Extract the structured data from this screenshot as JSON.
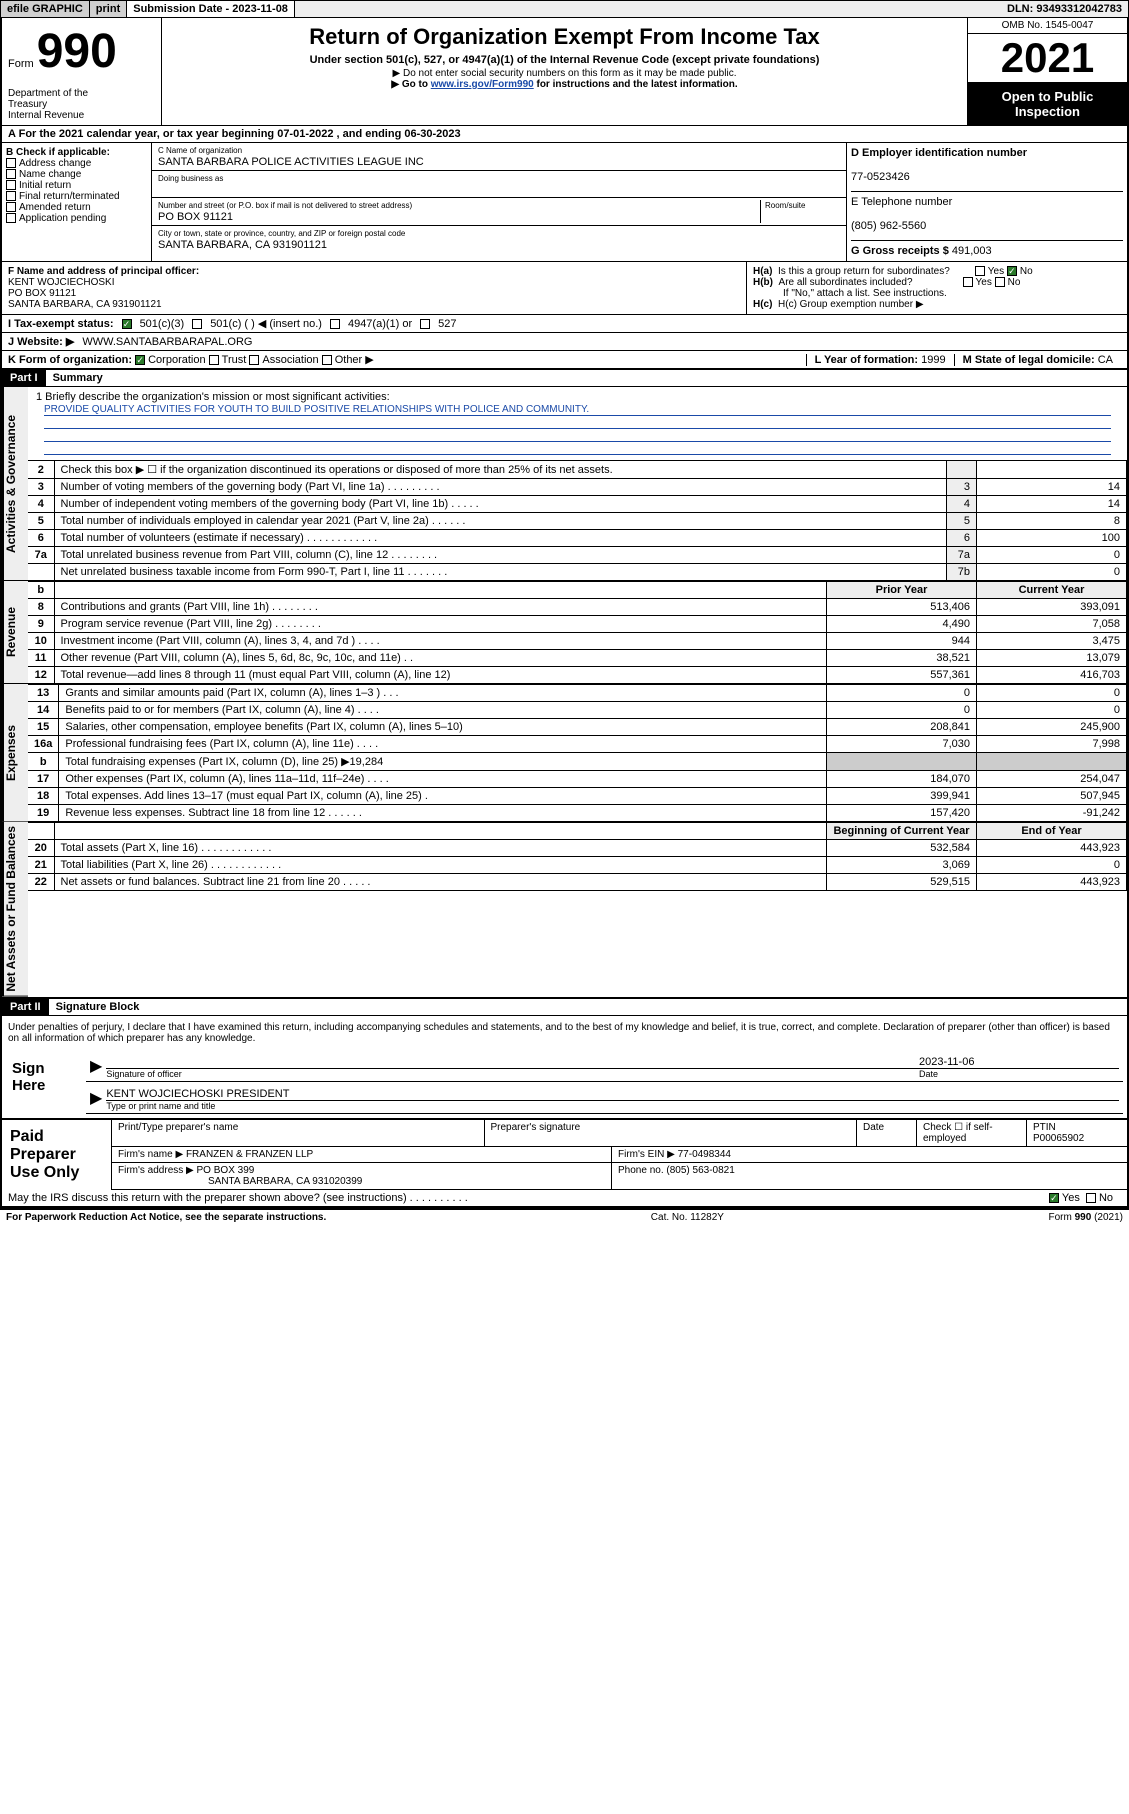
{
  "topbar": {
    "efile": "efile GRAPHIC",
    "print": "print",
    "submission": "Submission Date - 2023-11-08",
    "dln": "DLN: 93493312042783"
  },
  "header": {
    "form_label": "Form",
    "form_num": "990",
    "dept": "Department of the Treasury\nInternal Revenue Service",
    "title": "Return of Organization Exempt From Income Tax",
    "sub1": "Under section 501(c), 527, or 4947(a)(1) of the Internal Revenue Code (except private foundations)",
    "sub2": "▶ Do not enter social security numbers on this form as it may be made public.",
    "sub3_prefix": "▶ Go to ",
    "sub3_link": "www.irs.gov/Form990",
    "sub3_suffix": " for instructions and the latest information.",
    "omb": "OMB No. 1545-0047",
    "year": "2021",
    "open": "Open to Public Inspection"
  },
  "line_a": "For the 2021 calendar year, or tax year beginning 07-01-2022   , and ending 06-30-2023",
  "block_b": {
    "hdr": "B Check if applicable:",
    "items": [
      "Address change",
      "Name change",
      "Initial return",
      "Final return/terminated",
      "Amended return",
      "Application pending"
    ]
  },
  "block_c": {
    "name_lbl": "C Name of organization",
    "name": "SANTA BARBARA POLICE ACTIVITIES LEAGUE INC",
    "dba_lbl": "Doing business as",
    "addr_lbl": "Number and street (or P.O. box if mail is not delivered to street address)",
    "room_lbl": "Room/suite",
    "addr": "PO BOX 91121",
    "city_lbl": "City or town, state or province, country, and ZIP or foreign postal code",
    "city": "SANTA BARBARA, CA  931901121"
  },
  "block_d": {
    "ein_lbl": "D Employer identification number",
    "ein": "77-0523426",
    "tel_lbl": "E Telephone number",
    "tel": "(805) 962-5560",
    "gross_lbl": "G Gross receipts $",
    "gross": "491,003"
  },
  "block_f": {
    "lbl": "F Name and address of principal officer:",
    "name": "KENT WOJCIECHOSKI",
    "addr1": "PO BOX 91121",
    "addr2": "SANTA BARBARA, CA  931901121"
  },
  "block_h": {
    "a_lbl": "H(a)  Is this a group return for subordinates?",
    "b_lbl": "H(b)  Are all subordinates included?",
    "no_note": "If \"No,\" attach a list. See instructions.",
    "c_lbl": "H(c)  Group exemption number ▶",
    "yes": "Yes",
    "no": "No"
  },
  "line_i": {
    "lbl": "I    Tax-exempt status:",
    "opt1": "501(c)(3)",
    "opt2": "501(c) (  ) ◀ (insert no.)",
    "opt3": "4947(a)(1) or",
    "opt4": "527"
  },
  "line_j": {
    "lbl": "J    Website: ▶",
    "val": "WWW.SANTABARBARAPAL.ORG"
  },
  "line_k": {
    "lbl": "K Form of organization:",
    "opts": [
      "Corporation",
      "Trust",
      "Association",
      "Other ▶"
    ]
  },
  "line_l": {
    "lbl": "L Year of formation:",
    "val": "1999"
  },
  "line_m": {
    "lbl": "M State of legal domicile:",
    "val": "CA"
  },
  "part1": {
    "hdr": "Part I",
    "title": "Summary"
  },
  "mission": {
    "line1_lbl": "1   Briefly describe the organization's mission or most significant activities:",
    "text": "PROVIDE QUALITY ACTIVITIES FOR YOUTH TO BUILD POSITIVE RELATIONSHIPS WITH POLICE AND COMMUNITY."
  },
  "gov_rows": [
    {
      "n": "2",
      "label": "Check this box ▶ ☐  if the organization discontinued its operations or disposed of more than 25% of its net assets.",
      "cell": "",
      "val": ""
    },
    {
      "n": "3",
      "label": "Number of voting members of the governing body (Part VI, line 1a)   .    .    .    .    .    .    .    .    .",
      "cell": "3",
      "val": "14"
    },
    {
      "n": "4",
      "label": "Number of independent voting members of the governing body (Part VI, line 1b)   .    .    .    .    .",
      "cell": "4",
      "val": "14"
    },
    {
      "n": "5",
      "label": "Total number of individuals employed in calendar year 2021 (Part V, line 2a)   .    .    .    .    .    .",
      "cell": "5",
      "val": "8"
    },
    {
      "n": "6",
      "label": "Total number of volunteers (estimate if necessary)   .    .    .    .    .    .    .    .    .    .    .    .",
      "cell": "6",
      "val": "100"
    },
    {
      "n": "7a",
      "label": "Total unrelated business revenue from Part VIII, column (C), line 12   .    .    .    .    .    .    .    .",
      "cell": "7a",
      "val": "0"
    },
    {
      "n": "",
      "label": "Net unrelated business taxable income from Form 990-T, Part I, line 11   .    .    .    .    .    .    .",
      "cell": "7b",
      "val": "0"
    }
  ],
  "two_col_hdr": {
    "b": "b",
    "prior": "Prior Year",
    "current": "Current Year"
  },
  "revenue_rows": [
    {
      "n": "8",
      "label": "Contributions and grants (Part VIII, line 1h)   .    .    .    .    .    .    .    .",
      "p": "513,406",
      "c": "393,091"
    },
    {
      "n": "9",
      "label": "Program service revenue (Part VIII, line 2g)   .    .    .    .    .    .    .    .",
      "p": "4,490",
      "c": "7,058"
    },
    {
      "n": "10",
      "label": "Investment income (Part VIII, column (A), lines 3, 4, and 7d )   .    .    .    .",
      "p": "944",
      "c": "3,475"
    },
    {
      "n": "11",
      "label": "Other revenue (Part VIII, column (A), lines 5, 6d, 8c, 9c, 10c, and 11e)    .    .",
      "p": "38,521",
      "c": "13,079"
    },
    {
      "n": "12",
      "label": "Total revenue—add lines 8 through 11 (must equal Part VIII, column (A), line 12)",
      "p": "557,361",
      "c": "416,703"
    }
  ],
  "expense_rows": [
    {
      "n": "13",
      "label": "Grants and similar amounts paid (Part IX, column (A), lines 1–3 )   .    .    .",
      "p": "0",
      "c": "0"
    },
    {
      "n": "14",
      "label": "Benefits paid to or for members (Part IX, column (A), line 4)   .    .    .    .",
      "p": "0",
      "c": "0"
    },
    {
      "n": "15",
      "label": "Salaries, other compensation, employee benefits (Part IX, column (A), lines 5–10)",
      "p": "208,841",
      "c": "245,900"
    },
    {
      "n": "16a",
      "label": "Professional fundraising fees (Part IX, column (A), line 11e)   .    .    .    .",
      "p": "7,030",
      "c": "7,998"
    },
    {
      "n": "b",
      "label": "Total fundraising expenses (Part IX, column (D), line 25) ▶19,284",
      "p": "grey",
      "c": "grey"
    },
    {
      "n": "17",
      "label": "Other expenses (Part IX, column (A), lines 11a–11d, 11f–24e)   .    .    .    .",
      "p": "184,070",
      "c": "254,047"
    },
    {
      "n": "18",
      "label": "Total expenses. Add lines 13–17 (must equal Part IX, column (A), line 25)    .",
      "p": "399,941",
      "c": "507,945"
    },
    {
      "n": "19",
      "label": "Revenue less expenses. Subtract line 18 from line 12   .    .    .    .    .    .",
      "p": "157,420",
      "c": "-91,242"
    }
  ],
  "net_hdr": {
    "prior": "Beginning of Current Year",
    "current": "End of Year"
  },
  "net_rows": [
    {
      "n": "20",
      "label": "Total assets (Part X, line 16)   .    .    .    .    .    .    .    .    .    .    .    .",
      "p": "532,584",
      "c": "443,923"
    },
    {
      "n": "21",
      "label": "Total liabilities (Part X, line 26)   .    .    .    .    .    .    .    .    .    .    .    .",
      "p": "3,069",
      "c": "0"
    },
    {
      "n": "22",
      "label": "Net assets or fund balances. Subtract line 21 from line 20   .    .    .    .    .",
      "p": "529,515",
      "c": "443,923"
    }
  ],
  "part2": {
    "hdr": "Part II",
    "title": "Signature Block"
  },
  "declaration": "Under penalties of perjury, I declare that I have examined this return, including accompanying schedules and statements, and to the best of my knowledge and belief, it is true, correct, and complete. Declaration of preparer (other than officer) is based on all information of which preparer has any knowledge.",
  "sign": {
    "left": "Sign Here",
    "date": "2023-11-06",
    "sig_lbl": "Signature of officer",
    "date_lbl": "Date",
    "name": "KENT WOJCIECHOSKI  PRESIDENT",
    "name_lbl": "Type or print name and title"
  },
  "paid": {
    "left": "Paid Preparer Use Only",
    "h1": "Print/Type preparer's name",
    "h2": "Preparer's signature",
    "h3": "Date",
    "h4_pre": "Check ☐ if self-employed",
    "h5_lbl": "PTIN",
    "h5": "P00065902",
    "firm_lbl": "Firm's name    ▶",
    "firm": "FRANZEN & FRANZEN LLP",
    "ein_lbl": "Firm's EIN ▶",
    "ein": "77-0498344",
    "addr_lbl": "Firm's address ▶",
    "addr1": "PO BOX 399",
    "addr2": "SANTA BARBARA, CA  931020399",
    "phone_lbl": "Phone no.",
    "phone": "(805) 563-0821"
  },
  "discuss": "May the IRS discuss this return with the preparer shown above? (see instructions)   .    .    .    .    .    .    .    .    .    .",
  "footer": {
    "left": "For Paperwork Reduction Act Notice, see the separate instructions.",
    "mid": "Cat. No. 11282Y",
    "right": "Form 990 (2021)"
  },
  "side_labels": {
    "gov": "Activities & Governance",
    "rev": "Revenue",
    "exp": "Expenses",
    "net": "Net Assets or Fund Balances"
  }
}
